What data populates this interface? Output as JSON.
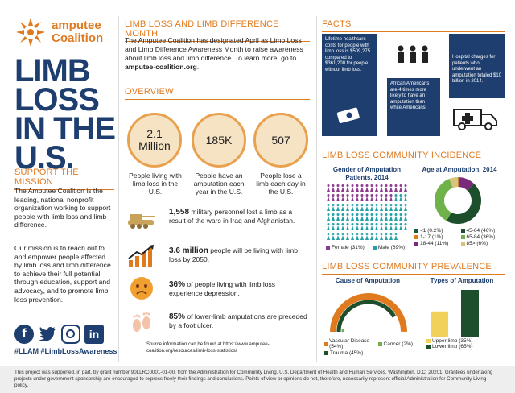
{
  "logo": {
    "line1": "amputee",
    "line2": "Coalition"
  },
  "main_title": [
    "LIMB",
    "LOSS",
    "IN THE",
    "U.S."
  ],
  "support": {
    "heading": "SUPPORT THE MISSION",
    "p1": "The Amputee Coalition is the leading, national nonprofit organization working to support people with limb loss and limb difference.",
    "p2": "Our mission is to reach out to and empower people affected by limb loss and limb difference to achieve their full potential through education, support and advocacy, and to promote limb loss prevention."
  },
  "social": {
    "icons": [
      "facebook-icon",
      "twitter-icon",
      "instagram-icon",
      "linkedin-icon"
    ],
    "hashtags": "#LLAM #LimbLossAwareness"
  },
  "month": {
    "heading": "LIMB LOSS AND LIMB DIFFERENCE MONTH",
    "text": "The Amputee Coalition has designated April as Limb Loss and Limb Difference Awareness Month to raise awareness about limb loss and limb difference. To learn more, go to",
    "link": "amputee-coalition.org",
    "tail": "."
  },
  "overview": {
    "heading": "OVERVIEW",
    "circles": [
      {
        "value": "2.1 Million",
        "caption": "People living with limb loss in the U.S."
      },
      {
        "value": "185K",
        "caption": "People have an amputation each year in the U.S."
      },
      {
        "value": "507",
        "caption": "People lose a limb each day in the U.S."
      }
    ],
    "rows": [
      {
        "bold": "1,558",
        "text": " military personnel lost a limb as a result of the wars in Iraq and Afghanistan."
      },
      {
        "bold": "3.6 million",
        "text": " people will be living with limb loss by 2050."
      },
      {
        "bold": "36%",
        "text": " of people living with limb loss experience depression."
      },
      {
        "bold": "85%",
        "text": " of lower-limb amputations are preceded by a foot ulcer."
      }
    ],
    "source": "Source information can be found at https://www.amputee-coalition.org/resources/limb-loss-statistics/"
  },
  "facts": {
    "heading": "FACTS",
    "f1": "Lifetime healthcare costs for people with limb loss is $509,275 compared to $361,200 for people without limb loss.",
    "f2": "African Americans are 4 times more likely to have an amputation than white Americans.",
    "f3": "Hospital charges for patients who underwent an amputation totaled $10 billion in 2014."
  },
  "incidence": {
    "heading": "LIMB LOSS COMMUNITY INCIDENCE",
    "gender_title": "Gender of Amputation Patients, 2014",
    "gender_legend": [
      "Female (31%)",
      "Male (69%)"
    ],
    "age_title": "Age at Amputation, 2014",
    "age_legend": [
      "<1 (0.2%)",
      "45-64 (46%)",
      "1-17 (1%)",
      "65-84 (36%)",
      "18-44 (11%)",
      "85> (6%)"
    ]
  },
  "prevalence": {
    "heading": "LIMB LOSS COMMUNITY PREVALENCE",
    "cause_title": "Cause of Amputation",
    "cause_legend": [
      "Vascular Disease (54%)",
      "Cancer (2%)",
      "Trauma (45%)"
    ],
    "types_title": "Types of Amputation",
    "types_legend": [
      "Upper limb (35%)",
      "Lower limb (65%)"
    ]
  },
  "footer": "This project was supported, in part, by grant number 90LLRC0001-01-00, from the Administration for Community Living, U.S. Department of Health and Human Services, Washington, D.C. 20201. Grantees undertaking projects under government sponsorship are encouraged to express freely their findings and conclusions. Points of view or opinions do not, therefore, necessarily represent official Administration for Community Living policy.",
  "chart_data": [
    {
      "type": "pie",
      "title": "Gender of Amputation Patients, 2014",
      "categories": [
        "Female",
        "Male"
      ],
      "values": [
        31,
        69
      ],
      "colors": [
        "#8e3a8f",
        "#23a0a6"
      ]
    },
    {
      "type": "pie",
      "title": "Age at Amputation, 2014",
      "categories": [
        "<1",
        "1-17",
        "18-44",
        "45-64",
        "65-84",
        "85>"
      ],
      "values": [
        0.2,
        1,
        11,
        46,
        36,
        6
      ],
      "colors": [
        "#1d5c3a",
        "#e07a1f",
        "#7a2a7a",
        "#1d4f2c",
        "#6fb24a",
        "#d8c37a"
      ]
    },
    {
      "type": "pie",
      "title": "Cause of Amputation",
      "categories": [
        "Vascular Disease",
        "Trauma",
        "Cancer"
      ],
      "values": [
        54,
        45,
        2
      ],
      "colors": [
        "#e07a1f",
        "#1d4f2c",
        "#6fb24a"
      ]
    },
    {
      "type": "bar",
      "title": "Types of Amputation",
      "categories": [
        "Upper limb",
        "Lower limb"
      ],
      "values": [
        35,
        65
      ],
      "colors": [
        "#f2d15a",
        "#1d4f2c"
      ]
    }
  ]
}
